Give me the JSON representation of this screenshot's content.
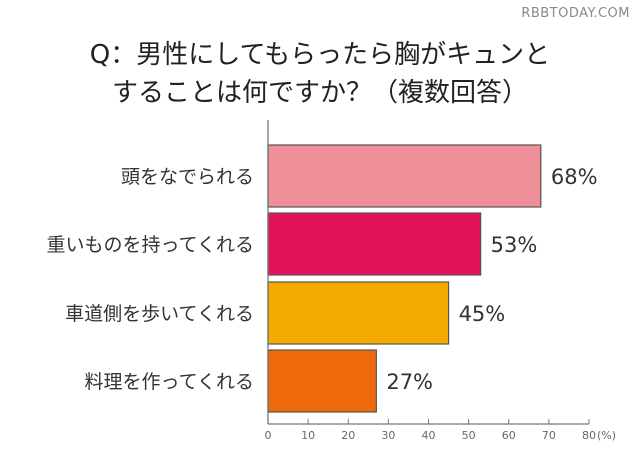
{
  "watermark": "RBBTODAY.COM",
  "chart_data": {
    "type": "bar",
    "orientation": "horizontal",
    "title_line1": "Q：男性にしてもらったら胸がキュンと",
    "title_line2": "することは何ですか？（複数回答）",
    "categories": [
      "頭をなでられる",
      "重いものを持ってくれる",
      "車道側を歩いてくれる",
      "料理を作ってくれる"
    ],
    "values": [
      68,
      53,
      45,
      27
    ],
    "value_labels": [
      "68%",
      "53%",
      "45%",
      "27%"
    ],
    "colors": [
      "#ef8f97",
      "#e0135a",
      "#f5aa00",
      "#ee6a0d"
    ],
    "xlim": [
      0,
      80
    ],
    "xticks": [
      "0",
      "10",
      "20",
      "30",
      "40",
      "50",
      "60",
      "70",
      "80"
    ],
    "unit_label": "(%)",
    "grid": false
  }
}
